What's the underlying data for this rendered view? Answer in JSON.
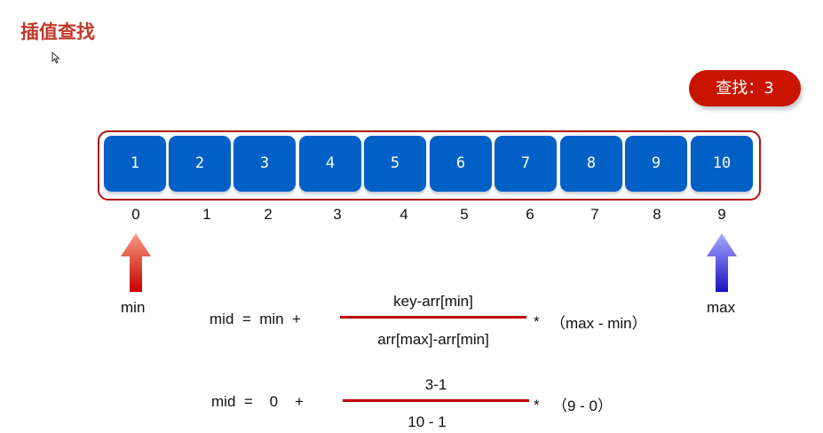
{
  "title": "插值查找",
  "badge": "查找：3",
  "array": {
    "values": [
      "1",
      "2",
      "3",
      "4",
      "5",
      "6",
      "7",
      "8",
      "9",
      "10"
    ],
    "indices": [
      "0",
      "1",
      "2",
      "3",
      "4",
      "5",
      "6",
      "7",
      "8",
      "9"
    ]
  },
  "pointers": {
    "min_label": "min",
    "max_label": "max"
  },
  "formula1": {
    "lhs": "mid  =  min  +",
    "numerator": "key-arr[min]",
    "denominator": "arr[max]-arr[min]",
    "times": "*",
    "tail": "（max - min）"
  },
  "formula2": {
    "lhs": "mid  =    0    +",
    "numerator": "3-1",
    "denominator": "10 - 1",
    "times": "*",
    "tail": "（9 - 0）"
  },
  "colors": {
    "cell": "#0060c6",
    "accent": "#c81400"
  }
}
